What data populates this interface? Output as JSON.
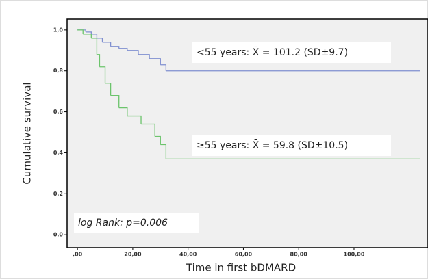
{
  "chart_data": {
    "type": "step",
    "xlabel": "Time in first bDMARD",
    "ylabel": "Cumulative survival",
    "xlim": [
      -3.75,
      126.75
    ],
    "ylim": [
      -0.063,
      1.053
    ],
    "xticks": [
      {
        "value": 0,
        "label": ",00"
      },
      {
        "value": 20,
        "label": "20,00"
      },
      {
        "value": 40,
        "label": "40,00"
      },
      {
        "value": 60,
        "label": "60,00"
      },
      {
        "value": 80,
        "label": "80,00"
      },
      {
        "value": 100,
        "label": "100,00"
      }
    ],
    "yticks": [
      {
        "value": 0,
        "label": "0,0"
      },
      {
        "value": 0.2,
        "label": "0,2"
      },
      {
        "value": 0.4,
        "label": "0,4"
      },
      {
        "value": 0.6,
        "label": "0,6"
      },
      {
        "value": 0.8,
        "label": "0,8"
      },
      {
        "value": 1,
        "label": "1,0"
      }
    ],
    "series": [
      {
        "color": "#7f8fd0",
        "x": [
          0,
          3,
          5,
          7,
          9,
          12,
          15,
          18,
          22,
          26,
          30,
          32,
          124
        ],
        "values": [
          1.0,
          0.99,
          0.98,
          0.96,
          0.94,
          0.92,
          0.91,
          0.9,
          0.88,
          0.86,
          0.83,
          0.8,
          0.8
        ]
      },
      {
        "color": "#6cc46c",
        "x": [
          0,
          2,
          5,
          7,
          8,
          10,
          12,
          15,
          18,
          23,
          28,
          30,
          32,
          124
        ],
        "values": [
          1.0,
          0.98,
          0.96,
          0.88,
          0.82,
          0.74,
          0.68,
          0.62,
          0.58,
          0.54,
          0.48,
          0.44,
          0.37,
          0.37
        ]
      }
    ],
    "annotations": [
      "<55 years: X̄ = 101.2 (SD±9.7)",
      "≥55 years: X̄ = 59.8 (SD±10.5)",
      "log Rank: p=0.006"
    ]
  }
}
